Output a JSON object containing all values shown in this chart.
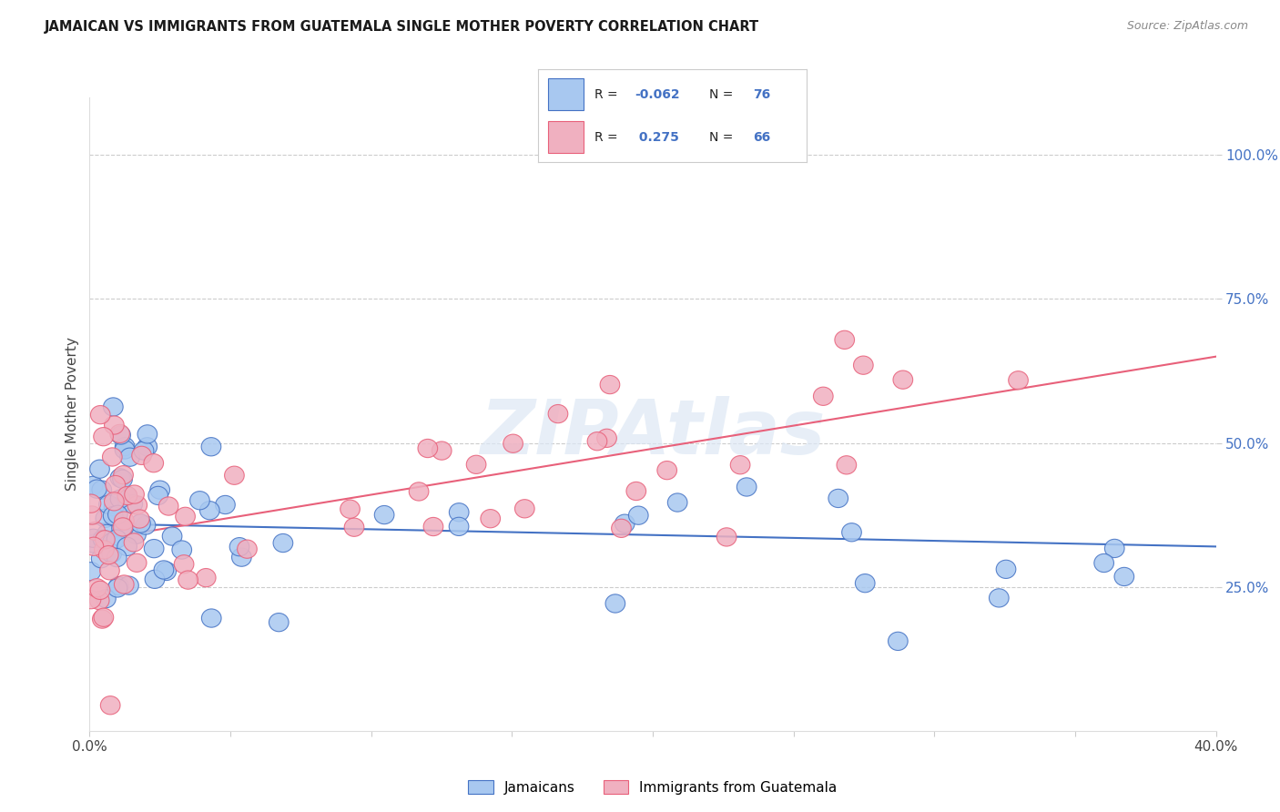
{
  "title": "JAMAICAN VS IMMIGRANTS FROM GUATEMALA SINGLE MOTHER POVERTY CORRELATION CHART",
  "source": "Source: ZipAtlas.com",
  "ylabel": "Single Mother Poverty",
  "ytick_labels": [
    "25.0%",
    "50.0%",
    "75.0%",
    "100.0%"
  ],
  "ytick_values": [
    0.25,
    0.5,
    0.75,
    1.0
  ],
  "xmin": 0.0,
  "xmax": 0.4,
  "ymin": 0.0,
  "ymax": 1.1,
  "color_blue": "#a8c8f0",
  "color_pink": "#f0b0c0",
  "color_blue_line": "#4472c4",
  "color_pink_line": "#e8607a",
  "color_blue_text": "#4472c4",
  "watermark": "ZIPAtlas",
  "label_jamaicans": "Jamaicans",
  "label_guatemala": "Immigrants from Guatemala",
  "blue_line_x": [
    0.0,
    0.4
  ],
  "blue_line_y": [
    0.36,
    0.32
  ],
  "pink_line_x": [
    0.0,
    0.4
  ],
  "pink_line_y": [
    0.33,
    0.65
  ]
}
